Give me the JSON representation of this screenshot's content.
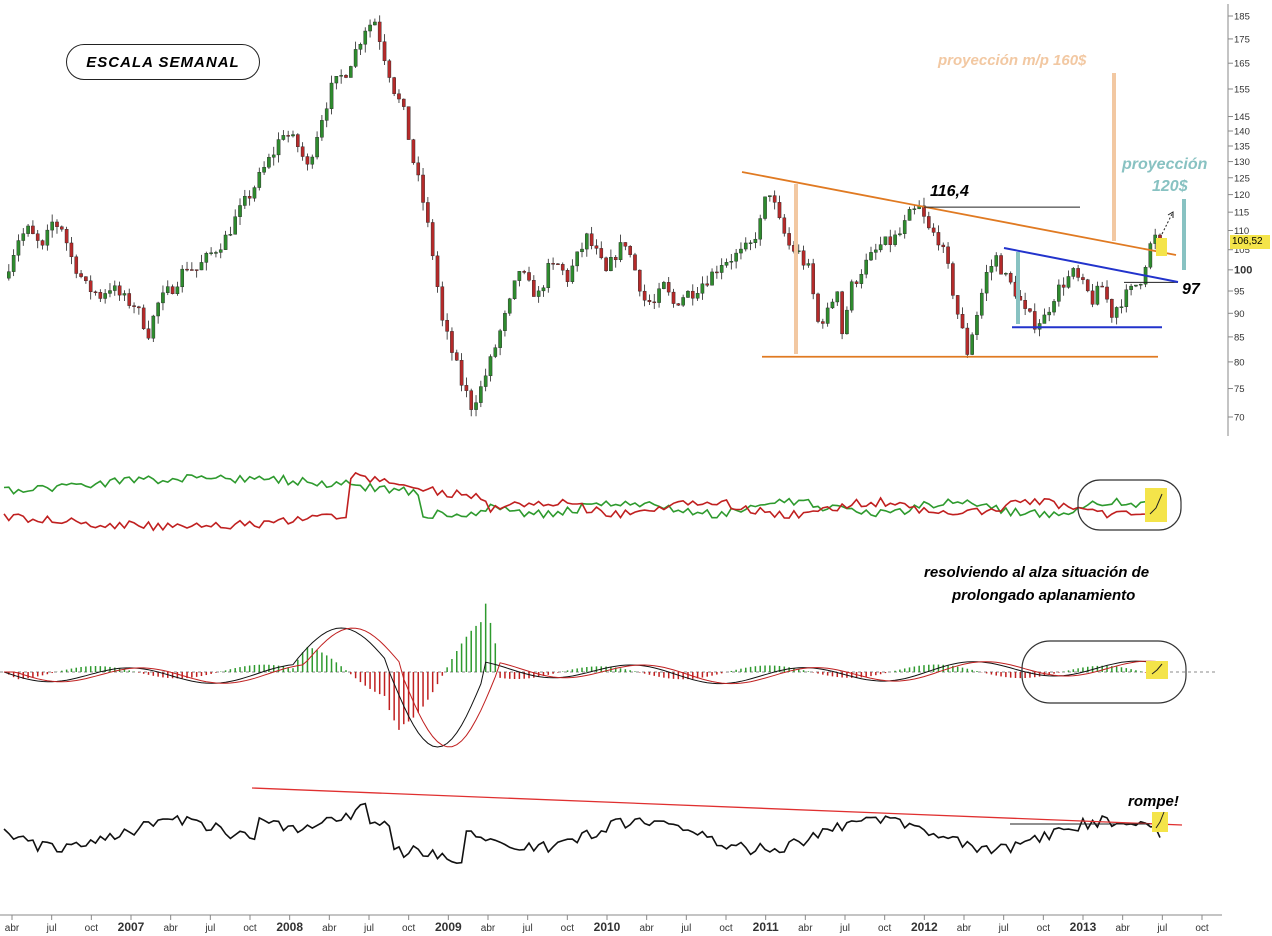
{
  "chart_data": {
    "type": "line",
    "title": "ESCALA SEMANAL",
    "scale": "log",
    "y_ticks": [
      185,
      175,
      165,
      155,
      145,
      140,
      135,
      130,
      125,
      120,
      115,
      110,
      105,
      100,
      95,
      90,
      85,
      80,
      75,
      70
    ],
    "ylim": [
      67,
      187
    ],
    "x_ticks": [
      "abr",
      "jul",
      "oct",
      "2007",
      "abr",
      "jul",
      "oct",
      "2008",
      "abr",
      "jul",
      "oct",
      "2009",
      "abr",
      "jul",
      "oct",
      "2010",
      "abr",
      "jul",
      "oct",
      "2011",
      "abr",
      "jul",
      "oct",
      "2012",
      "abr",
      "jul",
      "oct",
      "2013",
      "abr",
      "jul",
      "oct"
    ],
    "last_price_label": "106,52",
    "price_path": [
      [
        0,
        98
      ],
      [
        3,
        108
      ],
      [
        5,
        110
      ],
      [
        8,
        105
      ],
      [
        10,
        112
      ],
      [
        12,
        111
      ],
      [
        14,
        103
      ],
      [
        17,
        96
      ],
      [
        20,
        94
      ],
      [
        22,
        96
      ],
      [
        25,
        93
      ],
      [
        27,
        92
      ],
      [
        30,
        86
      ],
      [
        32,
        92
      ],
      [
        35,
        96
      ],
      [
        38,
        101
      ],
      [
        40,
        100
      ],
      [
        43,
        104
      ],
      [
        46,
        108
      ],
      [
        48,
        113
      ],
      [
        51,
        120
      ],
      [
        53,
        125
      ],
      [
        56,
        133
      ],
      [
        58,
        140
      ],
      [
        61,
        135
      ],
      [
        63,
        128
      ],
      [
        66,
        145
      ],
      [
        68,
        155
      ],
      [
        71,
        162
      ],
      [
        73,
        170
      ],
      [
        75,
        180
      ],
      [
        77,
        183
      ],
      [
        79,
        168
      ],
      [
        81,
        155
      ],
      [
        83,
        146
      ],
      [
        85,
        130
      ],
      [
        87,
        118
      ],
      [
        89,
        104
      ],
      [
        91,
        88
      ],
      [
        93,
        82
      ],
      [
        95,
        76
      ],
      [
        97,
        72
      ],
      [
        99,
        75
      ],
      [
        101,
        80
      ],
      [
        103,
        86
      ],
      [
        105,
        92
      ],
      [
        107,
        100
      ],
      [
        109,
        96
      ],
      [
        111,
        94
      ],
      [
        113,
        100
      ],
      [
        115,
        101
      ],
      [
        117,
        98
      ],
      [
        119,
        103
      ],
      [
        121,
        108
      ],
      [
        123,
        104
      ],
      [
        125,
        99
      ],
      [
        127,
        104
      ],
      [
        129,
        107
      ],
      [
        131,
        100
      ],
      [
        133,
        93
      ],
      [
        135,
        92
      ],
      [
        137,
        96
      ],
      [
        139,
        92
      ],
      [
        141,
        94
      ],
      [
        143,
        95
      ],
      [
        145,
        97
      ],
      [
        147,
        99
      ],
      [
        149,
        102
      ],
      [
        151,
        103
      ],
      [
        153,
        104
      ],
      [
        155,
        106
      ],
      [
        157,
        112
      ],
      [
        158,
        118
      ],
      [
        159,
        121
      ],
      [
        161,
        112
      ],
      [
        163,
        106
      ],
      [
        165,
        104
      ],
      [
        167,
        100
      ],
      [
        169,
        88
      ],
      [
        171,
        90
      ],
      [
        173,
        96
      ],
      [
        174,
        86
      ],
      [
        176,
        96
      ],
      [
        178,
        100
      ],
      [
        180,
        103
      ],
      [
        182,
        106
      ],
      [
        184,
        107
      ],
      [
        186,
        109
      ],
      [
        188,
        114
      ],
      [
        190,
        116
      ],
      [
        192,
        110
      ],
      [
        194,
        108
      ],
      [
        196,
        100
      ],
      [
        198,
        90
      ],
      [
        199,
        86
      ],
      [
        200,
        82
      ],
      [
        202,
        90
      ],
      [
        204,
        99
      ],
      [
        206,
        103
      ],
      [
        208,
        98
      ],
      [
        210,
        95
      ],
      [
        212,
        90
      ],
      [
        214,
        88
      ],
      [
        216,
        89
      ],
      [
        218,
        94
      ],
      [
        220,
        97
      ],
      [
        222,
        99
      ],
      [
        224,
        96
      ],
      [
        226,
        93
      ],
      [
        228,
        96
      ],
      [
        230,
        90
      ],
      [
        232,
        93
      ],
      [
        234,
        95
      ],
      [
        236,
        98
      ],
      [
        238,
        106
      ],
      [
        239,
        108
      ],
      [
        240,
        106.5
      ]
    ],
    "y_markers": [
      {
        "label": "116,4",
        "value": 116.4
      },
      {
        "label": "97",
        "value": 97
      }
    ],
    "supports": [
      81,
      87
    ],
    "targets": [
      {
        "label": "proyección m/p 160$",
        "value": 160
      },
      {
        "label": "proyección 120$",
        "value": 120
      }
    ]
  },
  "annotations": {
    "title": "ESCALA SEMANAL",
    "proj_mp": "proyección m/p 160$",
    "proj_120_line1": "proyección",
    "proj_120_line2": "120$",
    "level_1164": "116,4",
    "level_97": "97",
    "resolving_line1": "resolviendo al alza situación de",
    "resolving_line2": "prolongado aplanamiento",
    "breaks": "rompe!"
  },
  "colors": {
    "up_candle": "#2e8b2e",
    "down_candle": "#b52a2a",
    "trend_orange": "#e07a22",
    "trend_blue": "#2233cc",
    "proj_mp": "#f2c8a2",
    "proj_120": "#88c2c2",
    "highlight": "#f4e44a",
    "red_line": "#e03030"
  }
}
